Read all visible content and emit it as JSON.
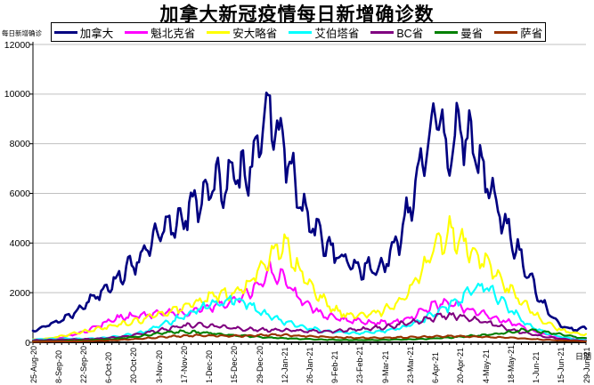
{
  "title": "加拿大新冠疫情每日新增确诊数",
  "y_axis": {
    "unit_label": "每日新增确诊",
    "min": 0,
    "max": 12000,
    "tick_step": 2000,
    "tick_labels": [
      "0",
      "2000",
      "4000",
      "6000",
      "8000",
      "10000",
      "12000"
    ]
  },
  "x_axis": {
    "label": "日期",
    "tick_labels": [
      "25-Aug-20",
      "8-Sep-20",
      "22-Sep-20",
      "6-Oct-20",
      "20-Oct-20",
      "3-Nov-20",
      "17-Nov-20",
      "1-Dec-20",
      "15-Dec-20",
      "29-Dec-20",
      "12-Jan-21",
      "26-Jan-21",
      "9-Feb-21",
      "23-Feb-21",
      "9-Mar-21",
      "23-Mar-21",
      "6-Apr-21",
      "20-Apr-21",
      "4-May-21",
      "18-May-21",
      "1-Jun-21",
      "15-Jun-21",
      "29-Jun-21"
    ],
    "tick_interval_days": 14
  },
  "legend": [
    {
      "label": "加拿大",
      "color": "#000080"
    },
    {
      "label": "魁北克省",
      "color": "#FF00FF"
    },
    {
      "label": "安大略省",
      "color": "#FFFF00"
    },
    {
      "label": "艾伯塔省",
      "color": "#00FFFF"
    },
    {
      "label": "BC省",
      "color": "#800080"
    },
    {
      "label": "曼省",
      "color": "#008000"
    },
    {
      "label": "萨省",
      "color": "#993300"
    }
  ],
  "colors": {
    "grid": "#c0c0c0",
    "axis": "#000000",
    "background": "#ffffff"
  },
  "chart_data": {
    "type": "line",
    "title": "加拿大新冠疫情每日新增确诊数",
    "xlabel": "日期",
    "ylabel": "每日新增确诊",
    "ylim": [
      0,
      12000
    ],
    "grid": true,
    "legend_position": "top",
    "x_start": "25-Aug-20",
    "x_end": "29-Jun-21",
    "total_days": 308,
    "sampling": "weekly anchors, day 0 = 25-Aug-20, step = 7 days (values estimated from plot)",
    "day_step": 7,
    "series": [
      {
        "name": "加拿大",
        "color": "#000080",
        "values": [
          500,
          650,
          850,
          1100,
          1500,
          1900,
          2300,
          2700,
          3200,
          3700,
          4300,
          4700,
          5100,
          5600,
          6300,
          6400,
          6600,
          6900,
          8300,
          9200,
          7800,
          6000,
          4800,
          4200,
          3600,
          3200,
          3000,
          2950,
          3100,
          4000,
          5600,
          7600,
          9000,
          7800,
          8500,
          7900,
          6600,
          5400,
          4300,
          3200,
          2100,
          1200,
          700,
          500,
          600
        ]
      },
      {
        "name": "魁北克省",
        "color": "#FF00FF",
        "values": [
          90,
          120,
          180,
          280,
          420,
          600,
          850,
          1000,
          1050,
          1100,
          1150,
          1200,
          1180,
          1250,
          1400,
          1550,
          1700,
          1950,
          2400,
          2900,
          2500,
          1900,
          1450,
          1150,
          1000,
          900,
          850,
          800,
          780,
          850,
          1000,
          1250,
          1500,
          1600,
          1450,
          1250,
          1100,
          950,
          800,
          600,
          430,
          290,
          190,
          130,
          100
        ]
      },
      {
        "name": "安大略省",
        "color": "#FFFF00",
        "values": [
          110,
          140,
          220,
          330,
          430,
          520,
          620,
          720,
          820,
          950,
          1100,
          1300,
          1450,
          1600,
          1800,
          1900,
          2000,
          2250,
          2900,
          3600,
          3900,
          3100,
          2400,
          1750,
          1300,
          1100,
          1080,
          1150,
          1300,
          1600,
          2100,
          2900,
          3900,
          4400,
          4200,
          3700,
          3200,
          2600,
          2100,
          1600,
          1100,
          750,
          500,
          370,
          300
        ]
      },
      {
        "name": "艾伯塔省",
        "color": "#00FFFF",
        "values": [
          110,
          125,
          140,
          150,
          145,
          160,
          200,
          260,
          330,
          450,
          650,
          850,
          1050,
          1300,
          1500,
          1650,
          1750,
          1550,
          1250,
          1000,
          820,
          680,
          560,
          480,
          430,
          390,
          380,
          400,
          460,
          560,
          700,
          900,
          1150,
          1450,
          1750,
          2100,
          2250,
          1800,
          1300,
          850,
          550,
          350,
          220,
          140,
          100
        ]
      },
      {
        "name": "BC省",
        "color": "#800080",
        "values": [
          80,
          95,
          105,
          115,
          125,
          140,
          170,
          220,
          290,
          380,
          480,
          580,
          650,
          700,
          680,
          620,
          560,
          540,
          510,
          500,
          490,
          470,
          450,
          440,
          460,
          480,
          520,
          560,
          620,
          700,
          800,
          900,
          1000,
          1100,
          1050,
          950,
          820,
          680,
          520,
          400,
          290,
          210,
          140,
          90,
          60
        ]
      },
      {
        "name": "曼省",
        "color": "#008000",
        "values": [
          40,
          45,
          55,
          65,
          75,
          95,
          120,
          160,
          210,
          280,
          360,
          420,
          430,
          400,
          370,
          330,
          290,
          250,
          210,
          185,
          165,
          145,
          125,
          110,
          100,
          95,
          90,
          92,
          100,
          108,
          118,
          135,
          160,
          190,
          225,
          260,
          300,
          350,
          420,
          490,
          460,
          390,
          310,
          230,
          160
        ]
      },
      {
        "name": "萨省",
        "color": "#993300",
        "values": [
          25,
          30,
          35,
          40,
          48,
          58,
          75,
          100,
          130,
          165,
          200,
          235,
          260,
          275,
          272,
          262,
          255,
          268,
          290,
          300,
          290,
          272,
          248,
          222,
          200,
          190,
          182,
          180,
          188,
          198,
          208,
          225,
          242,
          252,
          246,
          235,
          218,
          198,
          178,
          150,
          122,
          98,
          78,
          58,
          42
        ]
      }
    ]
  }
}
